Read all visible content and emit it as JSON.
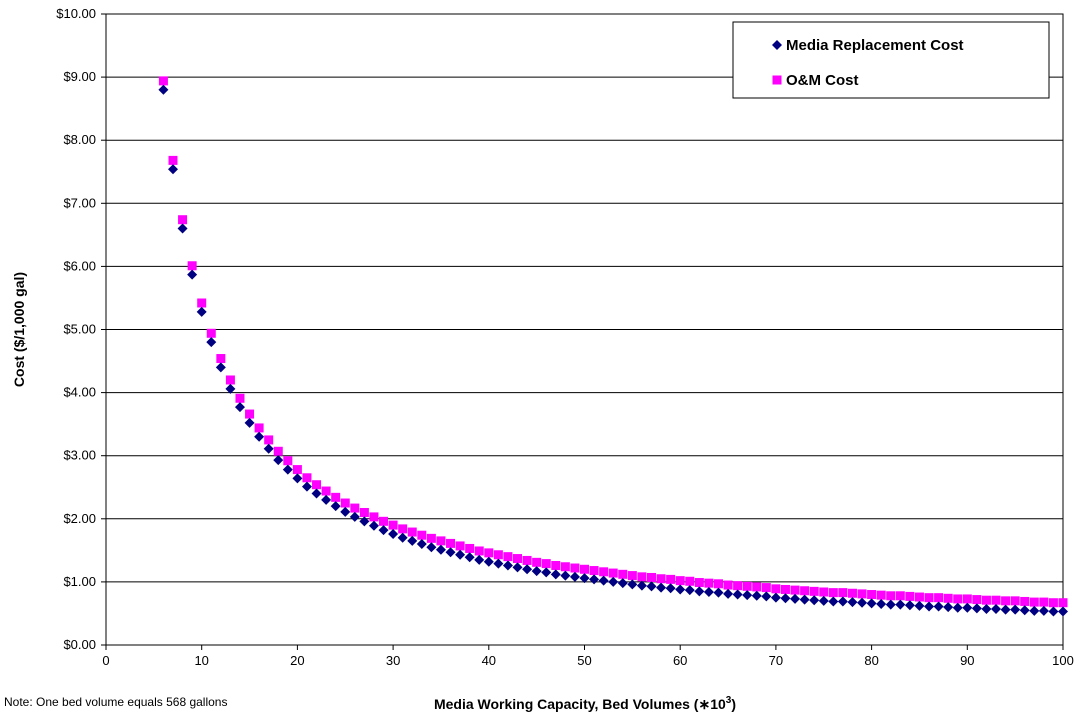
{
  "chart_data": {
    "type": "scatter",
    "title": "",
    "xlabel": "Media Working Capacity, Bed Volumes (∗",
    "xlabel_sup": "3",
    "xlabel_base": "10",
    "xlabel_close": ")",
    "ylabel": "Cost ($/1,000 gal)",
    "xlim": [
      0,
      100
    ],
    "ylim": [
      0,
      10
    ],
    "x_ticks": [
      "0",
      "10",
      "20",
      "30",
      "40",
      "50",
      "60",
      "70",
      "80",
      "90",
      "100"
    ],
    "y_ticks": [
      "$0.00",
      "$1.00",
      "$2.00",
      "$3.00",
      "$4.00",
      "$5.00",
      "$6.00",
      "$7.00",
      "$8.00",
      "$9.00",
      "$10.00"
    ],
    "grid": "horizontal",
    "legend_position": "top-right",
    "note": "Note: One bed volume equals 568 gallons",
    "series": [
      {
        "name": "Media Replacement Cost",
        "marker": "diamond",
        "color": "#000080",
        "x": [
          6,
          7,
          8,
          9,
          10,
          11,
          12,
          13,
          14,
          15,
          16,
          17,
          18,
          19,
          20,
          21,
          22,
          23,
          24,
          25,
          26,
          27,
          28,
          29,
          30,
          31,
          32,
          33,
          34,
          35,
          36,
          37,
          38,
          39,
          40,
          41,
          42,
          43,
          44,
          45,
          46,
          47,
          48,
          49,
          50,
          51,
          52,
          53,
          54,
          55,
          56,
          57,
          58,
          59,
          60,
          61,
          62,
          63,
          64,
          65,
          66,
          67,
          68,
          69,
          70,
          71,
          72,
          73,
          74,
          75,
          76,
          77,
          78,
          79,
          80,
          81,
          82,
          83,
          84,
          85,
          86,
          87,
          88,
          89,
          90,
          91,
          92,
          93,
          94,
          95,
          96,
          97,
          98,
          99,
          100
        ],
        "y": [
          8.8,
          7.54,
          6.6,
          5.87,
          5.28,
          4.8,
          4.4,
          4.06,
          3.77,
          3.52,
          3.3,
          3.11,
          2.93,
          2.78,
          2.64,
          2.51,
          2.4,
          2.3,
          2.2,
          2.11,
          2.03,
          1.96,
          1.89,
          1.82,
          1.76,
          1.7,
          1.65,
          1.6,
          1.55,
          1.51,
          1.47,
          1.43,
          1.39,
          1.35,
          1.32,
          1.29,
          1.26,
          1.23,
          1.2,
          1.17,
          1.15,
          1.12,
          1.1,
          1.08,
          1.06,
          1.04,
          1.02,
          1.0,
          0.98,
          0.96,
          0.94,
          0.93,
          0.91,
          0.9,
          0.88,
          0.87,
          0.85,
          0.84,
          0.83,
          0.81,
          0.8,
          0.79,
          0.78,
          0.77,
          0.75,
          0.74,
          0.73,
          0.72,
          0.71,
          0.7,
          0.69,
          0.69,
          0.68,
          0.67,
          0.66,
          0.65,
          0.64,
          0.64,
          0.63,
          0.62,
          0.61,
          0.61,
          0.6,
          0.59,
          0.59,
          0.58,
          0.57,
          0.57,
          0.56,
          0.56,
          0.55,
          0.54,
          0.54,
          0.53,
          0.53
        ]
      },
      {
        "name": "O&M Cost",
        "marker": "square",
        "color": "#ff00ff",
        "x": [
          6,
          7,
          8,
          9,
          10,
          11,
          12,
          13,
          14,
          15,
          16,
          17,
          18,
          19,
          20,
          21,
          22,
          23,
          24,
          25,
          26,
          27,
          28,
          29,
          30,
          31,
          32,
          33,
          34,
          35,
          36,
          37,
          38,
          39,
          40,
          41,
          42,
          43,
          44,
          45,
          46,
          47,
          48,
          49,
          50,
          51,
          52,
          53,
          54,
          55,
          56,
          57,
          58,
          59,
          60,
          61,
          62,
          63,
          64,
          65,
          66,
          67,
          68,
          69,
          70,
          71,
          72,
          73,
          74,
          75,
          76,
          77,
          78,
          79,
          80,
          81,
          82,
          83,
          84,
          85,
          86,
          87,
          88,
          89,
          90,
          91,
          92,
          93,
          94,
          95,
          96,
          97,
          98,
          99,
          100
        ],
        "y": [
          8.94,
          7.68,
          6.74,
          6.01,
          5.42,
          4.94,
          4.54,
          4.2,
          3.91,
          3.66,
          3.44,
          3.25,
          3.07,
          2.92,
          2.78,
          2.65,
          2.54,
          2.44,
          2.34,
          2.25,
          2.17,
          2.1,
          2.03,
          1.96,
          1.9,
          1.84,
          1.79,
          1.74,
          1.69,
          1.65,
          1.61,
          1.57,
          1.53,
          1.49,
          1.46,
          1.43,
          1.4,
          1.37,
          1.34,
          1.31,
          1.29,
          1.26,
          1.24,
          1.22,
          1.2,
          1.18,
          1.16,
          1.14,
          1.12,
          1.1,
          1.08,
          1.07,
          1.05,
          1.04,
          1.02,
          1.01,
          0.99,
          0.98,
          0.97,
          0.95,
          0.94,
          0.93,
          0.92,
          0.91,
          0.89,
          0.88,
          0.87,
          0.86,
          0.85,
          0.84,
          0.83,
          0.83,
          0.82,
          0.81,
          0.8,
          0.79,
          0.78,
          0.78,
          0.77,
          0.76,
          0.75,
          0.75,
          0.74,
          0.73,
          0.73,
          0.72,
          0.71,
          0.71,
          0.7,
          0.7,
          0.69,
          0.68,
          0.68,
          0.67,
          0.67
        ]
      }
    ]
  }
}
